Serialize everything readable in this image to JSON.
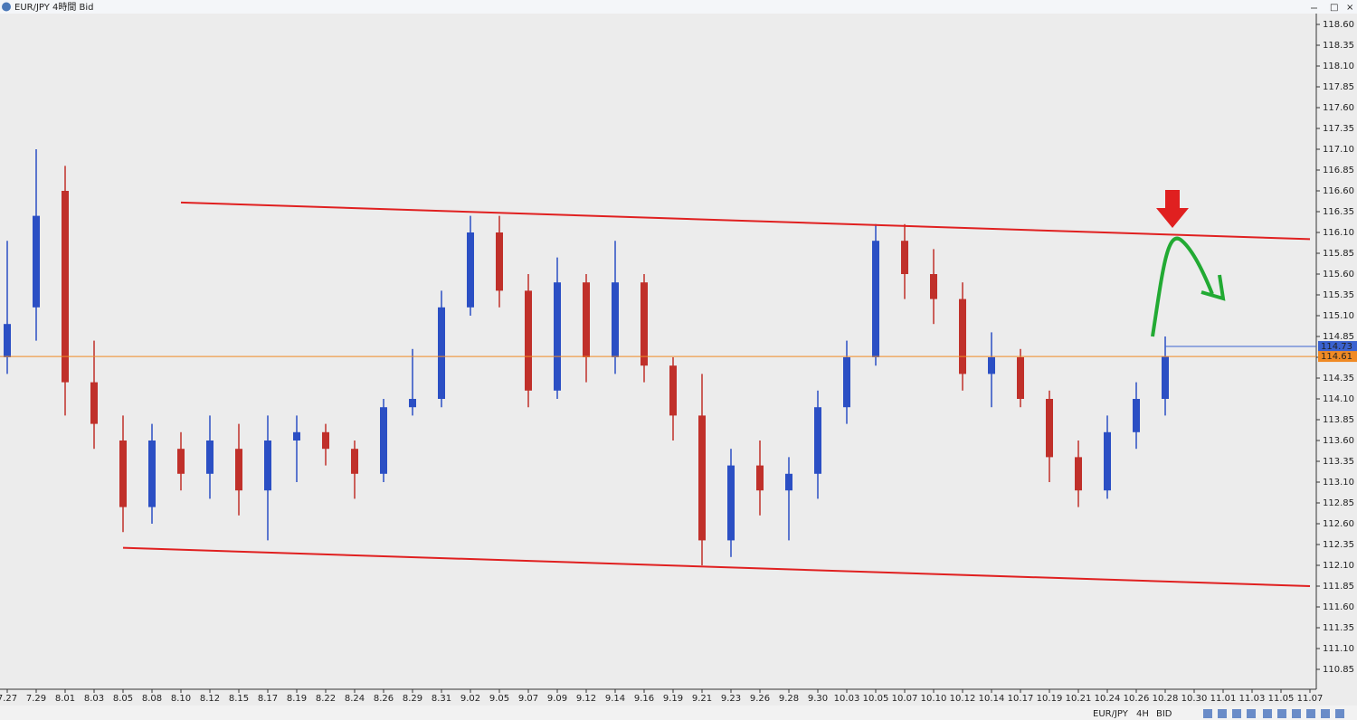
{
  "window_title": "EUR/JPY 4時間 Bid",
  "toolbar": [
    "EUR/JPY",
    "4H",
    "BID"
  ],
  "chart_data": {
    "type": "candlestick",
    "categories": [
      "7.27",
      "7.29",
      "8.01",
      "8.03",
      "8.05",
      "8.08",
      "8.10",
      "8.12",
      "8.15",
      "8.17",
      "8.19",
      "8.22",
      "8.24",
      "8.26",
      "8.29",
      "8.31",
      "9.02",
      "9.05",
      "9.07",
      "9.09",
      "9.12",
      "9.14",
      "9.16",
      "9.19",
      "9.21",
      "9.23",
      "9.26",
      "9.28",
      "9.30",
      "10.03",
      "10.05",
      "10.07",
      "10.10",
      "10.12",
      "10.14",
      "10.17",
      "10.19",
      "10.21",
      "10.24",
      "10.26",
      "10.28",
      "10.30",
      "11.01",
      "11.03",
      "11.05",
      "11.07"
    ],
    "open": [
      114.6,
      115.2,
      116.6,
      114.3,
      113.6,
      112.8,
      113.5,
      113.2,
      113.5,
      113.0,
      113.6,
      113.7,
      113.5,
      113.2,
      114.0,
      114.1,
      115.2,
      116.1,
      115.4,
      114.2,
      115.5,
      114.6,
      115.5,
      114.5,
      113.9,
      112.4,
      113.3,
      113.0,
      113.2,
      114.0,
      114.6,
      116.0,
      115.6,
      115.3,
      114.4,
      114.6,
      114.1,
      113.4,
      113.0,
      113.7,
      114.1,
      null,
      null,
      null,
      null,
      null
    ],
    "high": [
      116.0,
      117.1,
      116.9,
      114.8,
      113.9,
      113.8,
      113.7,
      113.9,
      113.8,
      113.9,
      113.9,
      113.8,
      113.6,
      114.1,
      114.7,
      115.4,
      116.3,
      116.3,
      115.6,
      115.8,
      115.6,
      116.0,
      115.6,
      114.6,
      114.4,
      113.5,
      113.6,
      113.4,
      114.2,
      114.8,
      116.2,
      116.2,
      115.9,
      115.5,
      114.9,
      114.7,
      114.2,
      113.6,
      113.9,
      114.3,
      114.85,
      null,
      null,
      null,
      null,
      null
    ],
    "low": [
      114.4,
      114.8,
      113.9,
      113.5,
      112.5,
      112.6,
      113.0,
      112.9,
      112.7,
      112.4,
      113.1,
      113.3,
      112.9,
      113.1,
      113.9,
      114.0,
      115.1,
      115.2,
      114.0,
      114.1,
      114.3,
      114.4,
      114.3,
      113.6,
      112.1,
      112.2,
      112.7,
      112.4,
      112.9,
      113.8,
      114.5,
      115.3,
      115.0,
      114.2,
      114.0,
      114.0,
      113.1,
      112.8,
      112.9,
      113.5,
      113.9,
      null,
      null,
      null,
      null,
      null
    ],
    "close": [
      115.0,
      116.3,
      114.3,
      113.8,
      112.8,
      113.6,
      113.2,
      113.6,
      113.0,
      113.6,
      113.7,
      113.5,
      113.2,
      114.0,
      114.1,
      115.2,
      116.1,
      115.4,
      114.2,
      115.5,
      114.6,
      115.5,
      114.5,
      113.9,
      112.4,
      113.3,
      113.0,
      113.2,
      114.0,
      114.6,
      116.0,
      115.6,
      115.3,
      114.4,
      114.6,
      114.1,
      113.4,
      113.0,
      113.7,
      114.1,
      114.61,
      null,
      null,
      null,
      null,
      null
    ],
    "up_color": "#2b4fc4",
    "down_color": "#c0302a",
    "ylim": [
      110.85,
      118.6
    ],
    "yticks": [
      {
        "value": 118.6,
        "label": "118.60"
      },
      {
        "value": 118.35,
        "label": "118.35"
      },
      {
        "value": 118.1,
        "label": "118.10"
      },
      {
        "value": 117.85,
        "label": "117.85"
      },
      {
        "value": 117.6,
        "label": "117.60"
      },
      {
        "value": 117.35,
        "label": "117.35"
      },
      {
        "value": 117.1,
        "label": "117.10"
      },
      {
        "value": 116.85,
        "label": "116.85"
      },
      {
        "value": 116.6,
        "label": "116.60"
      },
      {
        "value": 116.35,
        "label": "116.35"
      },
      {
        "value": 116.1,
        "label": "116.10"
      },
      {
        "value": 115.85,
        "label": "115.85"
      },
      {
        "value": 115.6,
        "label": "115.60"
      },
      {
        "value": 115.35,
        "label": "115.35"
      },
      {
        "value": 115.1,
        "label": "115.10"
      },
      {
        "value": 114.85,
        "label": "114.85"
      },
      {
        "value": 114.6,
        "label": "114.60"
      },
      {
        "value": 114.35,
        "label": "114.35"
      },
      {
        "value": 114.1,
        "label": "114.10"
      },
      {
        "value": 113.85,
        "label": "113.85"
      },
      {
        "value": 113.6,
        "label": "113.60"
      },
      {
        "value": 113.35,
        "label": "113.35"
      },
      {
        "value": 113.1,
        "label": "113.10"
      },
      {
        "value": 112.85,
        "label": "112.85"
      },
      {
        "value": 112.6,
        "label": "112.60"
      },
      {
        "value": 112.35,
        "label": "112.35"
      },
      {
        "value": 112.1,
        "label": "112.10"
      },
      {
        "value": 111.85,
        "label": "111.85"
      },
      {
        "value": 111.6,
        "label": "111.60"
      },
      {
        "value": 111.35,
        "label": "111.35"
      },
      {
        "value": 111.1,
        "label": "111.10"
      },
      {
        "value": 110.85,
        "label": "110.85"
      }
    ],
    "trendlines": [
      {
        "from": "8.10",
        "to": "11.07",
        "values": [
          116.46,
          116.02
        ],
        "color": "#e02020"
      },
      {
        "from": "8.05",
        "to": "11.07",
        "values": [
          112.31,
          111.85
        ],
        "color": "#e02020"
      }
    ],
    "price_tags": [
      {
        "value": 114.73,
        "label": "114.73",
        "color": "#3a62d0"
      },
      {
        "value": 114.61,
        "label": "114.61",
        "color": "#f08a24"
      }
    ]
  }
}
